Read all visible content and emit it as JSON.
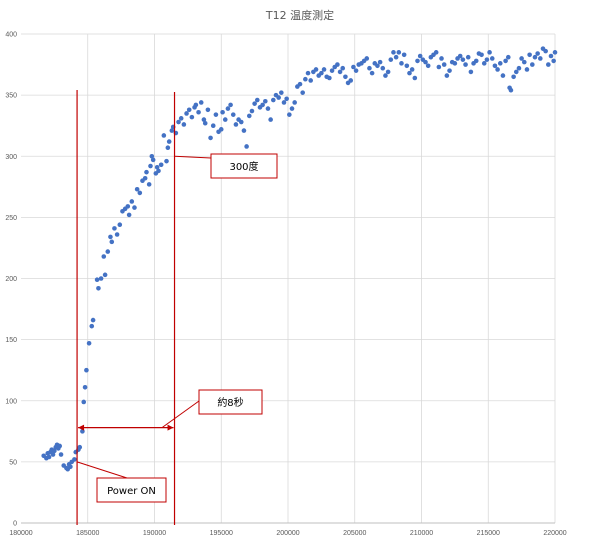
{
  "chart_data": {
    "type": "scatter",
    "title": "T12 温度測定",
    "xlabel": "",
    "ylabel": "",
    "xlim": [
      180000,
      220000
    ],
    "ylim": [
      0,
      400
    ],
    "xticks": [
      180000,
      185000,
      190000,
      195000,
      200000,
      205000,
      210000,
      215000,
      220000
    ],
    "yticks": [
      0,
      50,
      100,
      150,
      200,
      250,
      300,
      350,
      400
    ],
    "grid": "on",
    "legend": "none",
    "marker_color": "#4472C4",
    "annotation_color": "#C00000",
    "series": [
      {
        "values": [
          [
            181700,
            55
          ],
          [
            181900,
            53
          ],
          [
            182000,
            57
          ],
          [
            182100,
            54
          ],
          [
            182200,
            58
          ],
          [
            182300,
            60
          ],
          [
            182400,
            56
          ],
          [
            182500,
            59
          ],
          [
            182600,
            62
          ],
          [
            182700,
            64
          ],
          [
            182800,
            61
          ],
          [
            182900,
            63
          ],
          [
            183000,
            56
          ],
          [
            183200,
            47
          ],
          [
            183400,
            45
          ],
          [
            183500,
            44
          ],
          [
            183600,
            48
          ],
          [
            183700,
            46
          ],
          [
            183800,
            50
          ],
          [
            184000,
            52
          ],
          [
            184100,
            58
          ],
          [
            184300,
            60
          ],
          [
            184400,
            62
          ],
          [
            184600,
            75
          ],
          [
            184700,
            99
          ],
          [
            184800,
            111
          ],
          [
            184900,
            125
          ],
          [
            185100,
            147
          ],
          [
            185300,
            161
          ],
          [
            185400,
            166
          ],
          [
            185700,
            199
          ],
          [
            185800,
            192
          ],
          [
            186000,
            200
          ],
          [
            186200,
            218
          ],
          [
            186300,
            203
          ],
          [
            186500,
            222
          ],
          [
            186700,
            234
          ],
          [
            186800,
            230
          ],
          [
            187000,
            241
          ],
          [
            187200,
            236
          ],
          [
            187400,
            244
          ],
          [
            187600,
            255
          ],
          [
            187800,
            257
          ],
          [
            188000,
            259
          ],
          [
            188100,
            252
          ],
          [
            188300,
            263
          ],
          [
            188500,
            258
          ],
          [
            188700,
            273
          ],
          [
            188900,
            270
          ],
          [
            189100,
            280
          ],
          [
            189300,
            282
          ],
          [
            189400,
            287
          ],
          [
            189600,
            277
          ],
          [
            189700,
            292
          ],
          [
            189800,
            300
          ],
          [
            189900,
            297
          ],
          [
            190100,
            286
          ],
          [
            190200,
            291
          ],
          [
            190300,
            288
          ],
          [
            190500,
            293
          ],
          [
            190700,
            317
          ],
          [
            190900,
            296
          ],
          [
            191000,
            307
          ],
          [
            191100,
            312
          ],
          [
            191300,
            321
          ],
          [
            191400,
            324
          ],
          [
            191600,
            319
          ],
          [
            191800,
            328
          ],
          [
            192000,
            331
          ],
          [
            192200,
            326
          ],
          [
            192400,
            335
          ],
          [
            192600,
            338
          ],
          [
            192800,
            332
          ],
          [
            193000,
            340
          ],
          [
            193100,
            342
          ],
          [
            193300,
            336
          ],
          [
            193500,
            344
          ],
          [
            193700,
            330
          ],
          [
            193800,
            327
          ],
          [
            194000,
            338
          ],
          [
            194200,
            315
          ],
          [
            194400,
            325
          ],
          [
            194600,
            334
          ],
          [
            194800,
            320
          ],
          [
            195000,
            322
          ],
          [
            195100,
            336
          ],
          [
            195300,
            330
          ],
          [
            195500,
            339
          ],
          [
            195700,
            342
          ],
          [
            195900,
            334
          ],
          [
            196100,
            326
          ],
          [
            196300,
            330
          ],
          [
            196500,
            328
          ],
          [
            196700,
            321
          ],
          [
            196900,
            308
          ],
          [
            197100,
            333
          ],
          [
            197300,
            337
          ],
          [
            197500,
            343
          ],
          [
            197700,
            346
          ],
          [
            197900,
            340
          ],
          [
            198100,
            342
          ],
          [
            198300,
            345
          ],
          [
            198500,
            339
          ],
          [
            198700,
            330
          ],
          [
            198900,
            346
          ],
          [
            199100,
            350
          ],
          [
            199300,
            348
          ],
          [
            199500,
            352
          ],
          [
            199700,
            344
          ],
          [
            199900,
            347
          ],
          [
            200100,
            334
          ],
          [
            200300,
            339
          ],
          [
            200500,
            344
          ],
          [
            200700,
            357
          ],
          [
            200900,
            359
          ],
          [
            201100,
            352
          ],
          [
            201300,
            363
          ],
          [
            201500,
            368
          ],
          [
            201700,
            362
          ],
          [
            201900,
            369
          ],
          [
            202100,
            371
          ],
          [
            202300,
            366
          ],
          [
            202500,
            368
          ],
          [
            202700,
            371
          ],
          [
            202900,
            365
          ],
          [
            203100,
            364
          ],
          [
            203300,
            370
          ],
          [
            203500,
            373
          ],
          [
            203700,
            375
          ],
          [
            203900,
            369
          ],
          [
            204100,
            372
          ],
          [
            204300,
            365
          ],
          [
            204500,
            360
          ],
          [
            204700,
            362
          ],
          [
            204900,
            373
          ],
          [
            205100,
            370
          ],
          [
            205300,
            375
          ],
          [
            205500,
            376
          ],
          [
            205700,
            378
          ],
          [
            205900,
            380
          ],
          [
            206100,
            372
          ],
          [
            206300,
            368
          ],
          [
            206500,
            376
          ],
          [
            206700,
            374
          ],
          [
            206900,
            377
          ],
          [
            207100,
            372
          ],
          [
            207300,
            366
          ],
          [
            207500,
            369
          ],
          [
            207700,
            379
          ],
          [
            207900,
            385
          ],
          [
            208100,
            381
          ],
          [
            208300,
            385
          ],
          [
            208500,
            376
          ],
          [
            208700,
            383
          ],
          [
            208900,
            374
          ],
          [
            209100,
            368
          ],
          [
            209300,
            371
          ],
          [
            209500,
            364
          ],
          [
            209700,
            378
          ],
          [
            209900,
            382
          ],
          [
            210100,
            379
          ],
          [
            210300,
            377
          ],
          [
            210500,
            374
          ],
          [
            210700,
            381
          ],
          [
            210900,
            383
          ],
          [
            211100,
            385
          ],
          [
            211300,
            373
          ],
          [
            211500,
            380
          ],
          [
            211700,
            375
          ],
          [
            211900,
            366
          ],
          [
            212100,
            370
          ],
          [
            212300,
            377
          ],
          [
            212500,
            376
          ],
          [
            212700,
            380
          ],
          [
            212900,
            382
          ],
          [
            213100,
            379
          ],
          [
            213300,
            375
          ],
          [
            213500,
            381
          ],
          [
            213700,
            369
          ],
          [
            213900,
            376
          ],
          [
            214100,
            378
          ],
          [
            214300,
            384
          ],
          [
            214500,
            383
          ],
          [
            214700,
            376
          ],
          [
            214900,
            379
          ],
          [
            215100,
            385
          ],
          [
            215300,
            380
          ],
          [
            215500,
            374
          ],
          [
            215700,
            371
          ],
          [
            215900,
            376
          ],
          [
            216100,
            366
          ],
          [
            216300,
            378
          ],
          [
            216500,
            381
          ],
          [
            216600,
            356
          ],
          [
            216700,
            354
          ],
          [
            216900,
            365
          ],
          [
            217100,
            369
          ],
          [
            217300,
            372
          ],
          [
            217500,
            380
          ],
          [
            217700,
            377
          ],
          [
            217900,
            371
          ],
          [
            218100,
            383
          ],
          [
            218300,
            375
          ],
          [
            218500,
            381
          ],
          [
            218700,
            384
          ],
          [
            218900,
            380
          ],
          [
            219100,
            388
          ],
          [
            219300,
            386
          ],
          [
            219500,
            375
          ],
          [
            219700,
            382
          ],
          [
            219900,
            378
          ],
          [
            220000,
            385
          ]
        ]
      }
    ],
    "annotations": [
      {
        "text": "Power ON",
        "x": 184200,
        "y": 50
      },
      {
        "text": "300度",
        "x": 191500,
        "y": 300
      },
      {
        "text": "約8秒",
        "x_start": 184200,
        "x_end": 191500,
        "y": 78
      }
    ]
  }
}
